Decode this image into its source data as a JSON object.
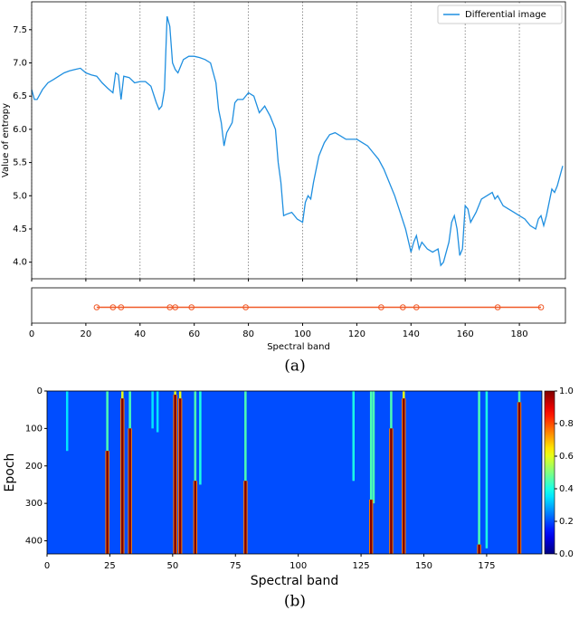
{
  "chart_data": [
    {
      "type": "line",
      "ylabel": "Value of entropy",
      "caption": "(a)",
      "legend": "upper right",
      "grid_x": true,
      "xlim": [
        0,
        197
      ],
      "ylim": [
        3.75,
        7.92
      ],
      "xticks": [
        0,
        20,
        40,
        60,
        80,
        100,
        120,
        140,
        160,
        180
      ],
      "yticks": [
        {
          "value": 4,
          "label": "4.0"
        },
        4.5,
        {
          "value": 5,
          "label": "5.0"
        },
        5.5,
        {
          "value": 6,
          "label": "6.0"
        },
        6.5,
        {
          "value": 7,
          "label": "7.0"
        },
        7.5
      ],
      "x": [
        0,
        1,
        2,
        4,
        6,
        8,
        10,
        12,
        14,
        16,
        18,
        20,
        22,
        24,
        26,
        28,
        30,
        31,
        32,
        33,
        34,
        36,
        38,
        40,
        42,
        44,
        46,
        47,
        48,
        49,
        50,
        51,
        52,
        53,
        54,
        56,
        58,
        60,
        62,
        64,
        66,
        68,
        69,
        70,
        71,
        72,
        74,
        75,
        76,
        78,
        80,
        82,
        84,
        86,
        88,
        90,
        91,
        92,
        93,
        94,
        96,
        98,
        100,
        101,
        102,
        103,
        104,
        106,
        108,
        110,
        112,
        114,
        116,
        118,
        120,
        122,
        124,
        126,
        128,
        130,
        132,
        134,
        136,
        138,
        140,
        141,
        142,
        143,
        144,
        146,
        148,
        150,
        151,
        152,
        154,
        155,
        156,
        157,
        158,
        159,
        160,
        161,
        162,
        164,
        166,
        168,
        170,
        171,
        172,
        174,
        176,
        178,
        180,
        182,
        184,
        186,
        187,
        188,
        189,
        190,
        192,
        193,
        194,
        196
      ],
      "series": [
        {
          "name": "Differential image",
          "color": "#1f8fe0",
          "values": [
            6.6,
            6.45,
            6.45,
            6.6,
            6.7,
            6.75,
            6.8,
            6.85,
            6.88,
            6.9,
            6.92,
            6.85,
            6.82,
            6.8,
            6.7,
            6.62,
            6.55,
            6.85,
            6.82,
            6.45,
            6.8,
            6.78,
            6.7,
            6.72,
            6.72,
            6.65,
            6.4,
            6.3,
            6.35,
            6.6,
            7.7,
            7.55,
            7.0,
            6.9,
            6.85,
            7.05,
            7.1,
            7.1,
            7.08,
            7.05,
            7.0,
            6.7,
            6.3,
            6.1,
            5.75,
            5.95,
            6.1,
            6.4,
            6.45,
            6.45,
            6.55,
            6.5,
            6.25,
            6.35,
            6.2,
            6.0,
            5.5,
            5.2,
            4.7,
            4.72,
            4.75,
            4.65,
            4.6,
            4.9,
            5.0,
            4.95,
            5.2,
            5.6,
            5.8,
            5.92,
            5.95,
            5.9,
            5.85,
            5.85,
            5.85,
            5.8,
            5.75,
            5.65,
            5.55,
            5.4,
            5.2,
            5.0,
            4.75,
            4.5,
            4.15,
            4.3,
            4.4,
            4.2,
            4.3,
            4.2,
            4.15,
            4.2,
            3.95,
            4.0,
            4.3,
            4.6,
            4.7,
            4.5,
            4.1,
            4.2,
            4.85,
            4.8,
            4.6,
            4.75,
            4.95,
            5.0,
            5.05,
            4.95,
            5.0,
            4.85,
            4.8,
            4.75,
            4.7,
            4.65,
            4.55,
            4.5,
            4.65,
            4.7,
            4.55,
            4.7,
            5.1,
            5.05,
            5.15,
            5.45
          ]
        }
      ]
    },
    {
      "type": "strip",
      "xlabel": "Spectral band",
      "xlim": [
        0,
        197
      ],
      "color": "#f05a28",
      "x": [
        24,
        30,
        33,
        51,
        53,
        59,
        79,
        129,
        137,
        142,
        172,
        188
      ]
    },
    {
      "type": "heatmap",
      "xlabel": "Spectral band",
      "ylabel": "Epoch",
      "caption": "(b)",
      "colormap": "jet",
      "xlim": [
        0,
        197
      ],
      "ylim": [
        0,
        435
      ],
      "base_value": 0.2,
      "xticks": [
        0,
        25,
        50,
        75,
        100,
        125,
        150,
        175
      ],
      "yticks": [
        0,
        100,
        200,
        300,
        400
      ],
      "colorbar_ticks": [
        {
          "value": 0,
          "label": "0.0"
        },
        0.2,
        0.4,
        0.6,
        0.8,
        {
          "value": 1,
          "label": "1.0"
        }
      ],
      "cells": [
        {
          "x": 8,
          "y0": 0,
          "y1": 160,
          "z": 0.35
        },
        {
          "x": 42,
          "y0": 0,
          "y1": 100,
          "z": 0.35
        },
        {
          "x": 44,
          "y0": 0,
          "y1": 110,
          "z": 0.35
        },
        {
          "x": 61,
          "y0": 0,
          "y1": 250,
          "z": 0.4
        },
        {
          "x": 122,
          "y0": 0,
          "y1": 240,
          "z": 0.4
        },
        {
          "x": 130,
          "y0": 0,
          "y1": 300,
          "z": 0.45
        },
        {
          "x": 175,
          "y0": 0,
          "y1": 420,
          "z": 0.4
        },
        {
          "x": 24,
          "y0": 0,
          "y1": 160,
          "z": 0.45
        },
        {
          "x": 24,
          "y0": 160,
          "y1": 435,
          "z": 1.0
        },
        {
          "x": 30,
          "y0": 0,
          "y1": 20,
          "z": 0.6
        },
        {
          "x": 30,
          "y0": 20,
          "y1": 435,
          "z": 1.0
        },
        {
          "x": 33,
          "y0": 0,
          "y1": 100,
          "z": 0.45
        },
        {
          "x": 33,
          "y0": 100,
          "y1": 435,
          "z": 1.0
        },
        {
          "x": 51,
          "y0": 0,
          "y1": 10,
          "z": 0.6
        },
        {
          "x": 51,
          "y0": 10,
          "y1": 435,
          "z": 1.0
        },
        {
          "x": 53,
          "y0": 0,
          "y1": 20,
          "z": 0.6
        },
        {
          "x": 53,
          "y0": 20,
          "y1": 435,
          "z": 1.0
        },
        {
          "x": 59,
          "y0": 0,
          "y1": 240,
          "z": 0.45
        },
        {
          "x": 59,
          "y0": 240,
          "y1": 435,
          "z": 1.0
        },
        {
          "x": 79,
          "y0": 0,
          "y1": 240,
          "z": 0.45
        },
        {
          "x": 79,
          "y0": 240,
          "y1": 435,
          "z": 1.0
        },
        {
          "x": 129,
          "y0": 0,
          "y1": 290,
          "z": 0.45
        },
        {
          "x": 129,
          "y0": 290,
          "y1": 435,
          "z": 1.0
        },
        {
          "x": 137,
          "y0": 0,
          "y1": 100,
          "z": 0.45
        },
        {
          "x": 137,
          "y0": 100,
          "y1": 435,
          "z": 1.0
        },
        {
          "x": 142,
          "y0": 0,
          "y1": 20,
          "z": 0.6
        },
        {
          "x": 142,
          "y0": 20,
          "y1": 435,
          "z": 1.0
        },
        {
          "x": 172,
          "y0": 0,
          "y1": 410,
          "z": 0.45
        },
        {
          "x": 172,
          "y0": 410,
          "y1": 435,
          "z": 1.0
        },
        {
          "x": 188,
          "y0": 0,
          "y1": 30,
          "z": 0.45
        },
        {
          "x": 188,
          "y0": 30,
          "y1": 435,
          "z": 1.0
        }
      ]
    }
  ]
}
